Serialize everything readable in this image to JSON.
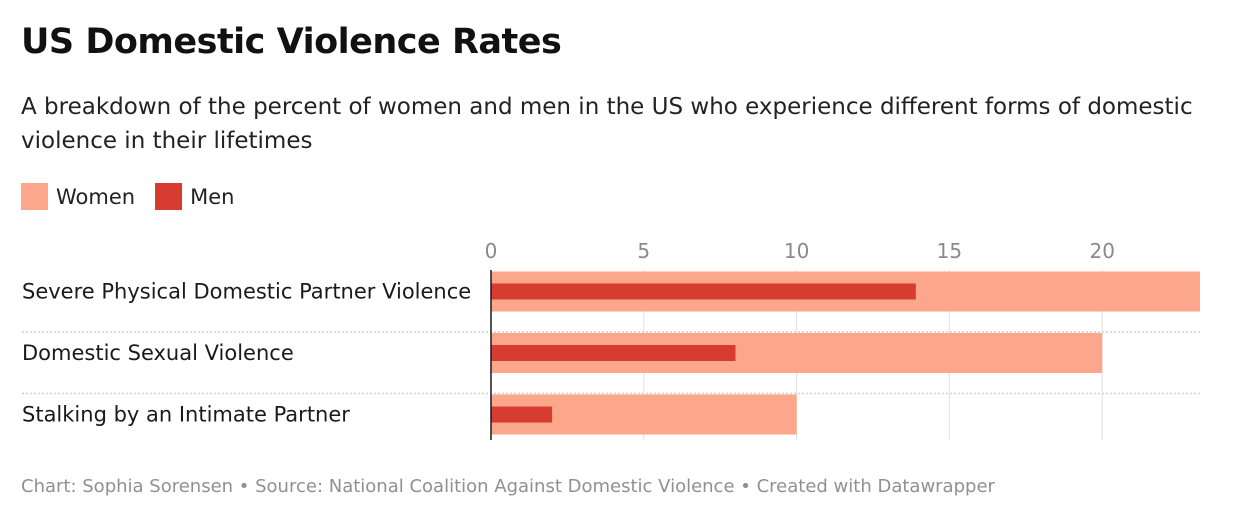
{
  "header": {
    "title": "US Domestic Violence Rates",
    "subtitle": "A breakdown of the percent of women and men in the US who experience different forms of domestic violence in their lifetimes"
  },
  "footer": {
    "credit": "Chart: Sophia Sorensen • Source: National Coalition Against Domestic Violence • Created with Datawrapper"
  },
  "colors": {
    "women": "#fca78b",
    "men": "#d63c2f",
    "grid": "#e0e0e0",
    "separator": "#cfcfcf",
    "axis": "#1a1a1a",
    "tick_text": "#8a8a8a"
  },
  "chart_data": {
    "type": "bar",
    "orientation": "horizontal",
    "categories": [
      "Severe Physical Domestic Partner Violence",
      "Domestic Sexual Violence",
      "Stalking by an Intimate Partner"
    ],
    "series": [
      {
        "name": "Women",
        "values": [
          23.2,
          20,
          10
        ]
      },
      {
        "name": "Men",
        "values": [
          13.9,
          8,
          2
        ]
      }
    ],
    "xlim": [
      0,
      23.2
    ],
    "xticks": [
      0,
      5,
      10,
      15,
      20
    ],
    "xtick_labels": [
      "0",
      "5",
      "10",
      "15",
      "20"
    ],
    "grid": true,
    "legend_position": "top-left"
  }
}
